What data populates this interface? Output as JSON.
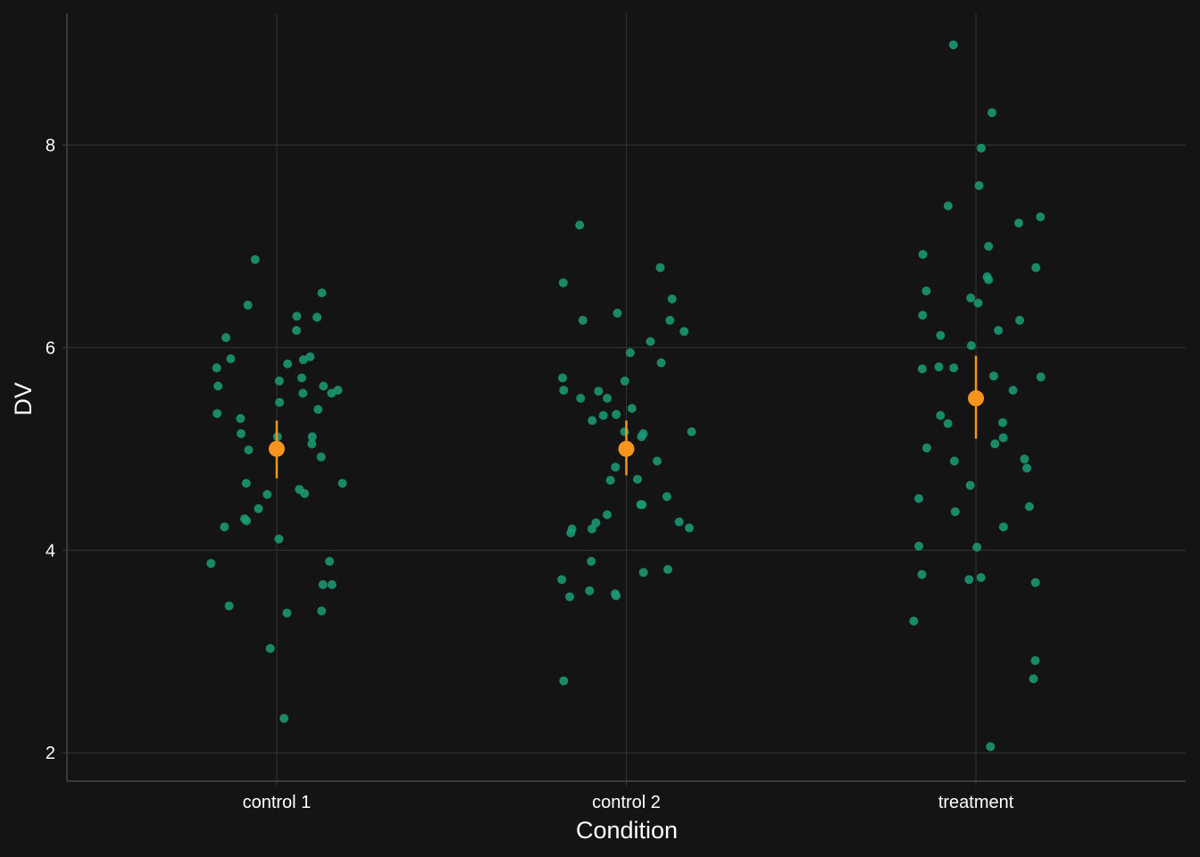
{
  "chart_data": {
    "type": "scatter",
    "xlabel": "Condition",
    "ylabel": "DV",
    "categories": [
      "control 1",
      "control 2",
      "treatment"
    ],
    "ylim": [
      1.72,
      9.3
    ],
    "yticks": [
      "2",
      "4",
      "6",
      "8"
    ],
    "grid": true,
    "legend": "none",
    "colors": {
      "background": "#141414",
      "grid": "#333333",
      "axis": "#3a3a3a",
      "points": "#1b9e77",
      "summary": "#f7941d",
      "text": "#ffffff"
    },
    "points": [
      [
        5.84,
        5.67,
        5.55,
        5.55,
        5.91,
        5.7,
        5.46,
        5.89,
        5.35,
        5.3,
        4.99,
        4.66,
        4.56,
        4.6,
        4.41,
        4.31,
        4.23,
        3.89,
        3.66,
        3.4,
        3.03,
        6.42,
        6.54,
        5.8,
        5.05,
        5.58,
        6.3,
        6.1,
        6.87,
        6.17,
        5.62,
        4.66,
        5.12,
        5.12,
        4.29,
        4.11,
        3.87,
        3.38,
        2.34,
        6.31,
        5.88,
        5.62,
        5.39,
        5.15,
        4.92,
        4.55,
        3.66,
        3.45
      ],
      [
        6.48,
        5.57,
        5.7,
        5.67,
        5.58,
        5.5,
        6.16,
        5.28,
        5.33,
        5.12,
        4.88,
        4.7,
        4.53,
        4.45,
        4.45,
        4.21,
        4.27,
        4.17,
        4.28,
        4.22,
        4.21,
        3.81,
        3.6,
        3.55,
        3.54,
        2.71,
        7.21,
        5.5,
        5.4,
        5.17,
        5.34,
        4.69,
        4.35,
        3.78,
        3.57,
        6.64,
        6.79,
        6.34,
        6.27,
        6.27,
        6.06,
        5.95,
        5.85,
        5.15,
        5.17,
        4.82,
        3.89,
        3.71
      ],
      [
        8.99,
        7.97,
        7.4,
        7.29,
        7.23,
        7.0,
        6.92,
        6.79,
        6.7,
        6.67,
        6.56,
        6.32,
        6.27,
        6.17,
        6.02,
        5.58,
        5.05,
        4.9,
        4.88,
        5.01,
        4.64,
        4.51,
        4.43,
        4.38,
        4.23,
        4.03,
        4.04,
        3.76,
        3.73,
        3.71,
        3.68,
        3.3,
        2.91,
        2.73,
        2.06,
        8.32,
        7.6,
        6.49,
        6.44,
        6.12,
        5.81,
        5.79,
        5.8,
        5.71,
        5.72,
        5.33,
        5.26,
        5.25,
        5.11,
        4.81
      ]
    ],
    "summary": [
      {
        "category": "control 1",
        "mean": 5.0,
        "low": 4.71,
        "high": 5.28
      },
      {
        "category": "control 2",
        "mean": 5.0,
        "low": 4.74,
        "high": 5.28
      },
      {
        "category": "treatment",
        "mean": 5.5,
        "low": 5.1,
        "high": 5.92
      }
    ]
  }
}
